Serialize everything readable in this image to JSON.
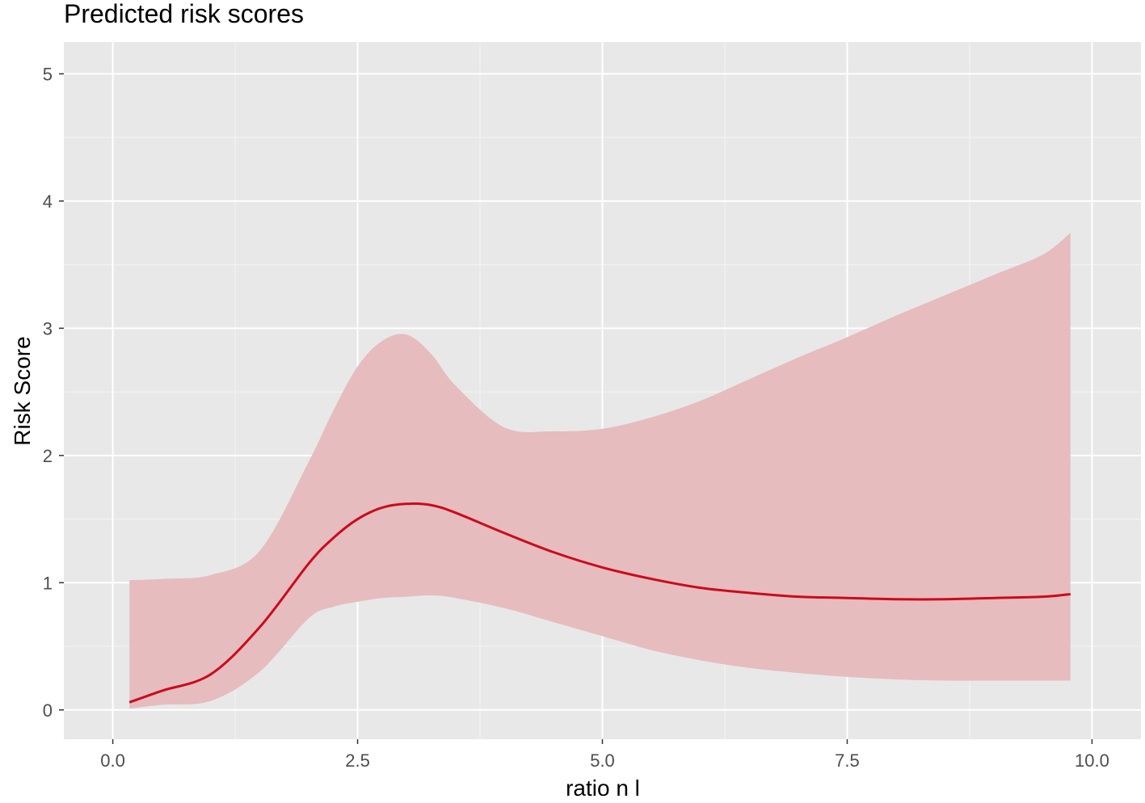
{
  "chart_data": {
    "type": "line",
    "title": "Predicted risk scores",
    "xlabel": "ratio n l",
    "ylabel": "Risk Score",
    "xlim": [
      -0.5,
      10.5
    ],
    "ylim": [
      -0.23,
      5.25
    ],
    "x_ticks": [
      0.0,
      2.5,
      5.0,
      7.5,
      10.0
    ],
    "x_tick_labels": [
      "0.0",
      "2.5",
      "5.0",
      "7.5",
      "10.0"
    ],
    "y_ticks": [
      0,
      1,
      2,
      3,
      4,
      5
    ],
    "y_tick_labels": [
      "0",
      "1",
      "2",
      "3",
      "4",
      "5"
    ],
    "grid": true,
    "legend": "none",
    "colors": {
      "panel_background": "#e8e8e8",
      "grid_major": "#ffffff",
      "grid_minor": "#f4f4f4",
      "line": "#cc0a1a",
      "ribbon": "#e6bcbf",
      "tick_label": "#4d4d4d",
      "tick_mark": "#333333"
    },
    "series": [
      {
        "x": [
          0.17,
          0.5,
          1.0,
          1.5,
          2.0,
          2.25,
          2.5,
          2.75,
          3.0,
          3.25,
          3.5,
          4.0,
          4.5,
          5.0,
          5.5,
          6.0,
          6.5,
          7.0,
          7.5,
          8.0,
          8.5,
          9.0,
          9.5,
          9.78
        ],
        "y": [
          0.06,
          0.15,
          0.28,
          0.65,
          1.15,
          1.35,
          1.5,
          1.59,
          1.62,
          1.61,
          1.55,
          1.39,
          1.24,
          1.12,
          1.03,
          0.96,
          0.92,
          0.89,
          0.88,
          0.87,
          0.87,
          0.88,
          0.89,
          0.91
        ],
        "lower": [
          0.01,
          0.04,
          0.07,
          0.3,
          0.72,
          0.81,
          0.85,
          0.88,
          0.89,
          0.9,
          0.88,
          0.8,
          0.69,
          0.58,
          0.47,
          0.39,
          0.33,
          0.29,
          0.26,
          0.24,
          0.23,
          0.23,
          0.23,
          0.23
        ],
        "upper": [
          1.02,
          1.03,
          1.06,
          1.25,
          1.95,
          2.35,
          2.7,
          2.9,
          2.95,
          2.8,
          2.55,
          2.22,
          2.19,
          2.21,
          2.3,
          2.43,
          2.6,
          2.77,
          2.93,
          3.1,
          3.26,
          3.42,
          3.58,
          3.75
        ]
      }
    ]
  }
}
